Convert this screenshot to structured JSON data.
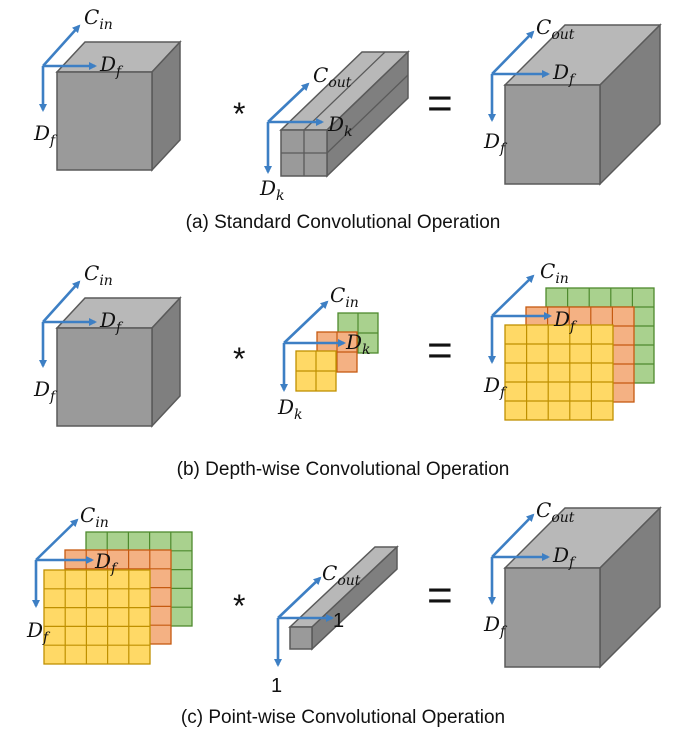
{
  "diagram": {
    "panels": [
      {
        "caption": "(a) Standard Convolutional Operation",
        "input": {
          "top": "C",
          "top_sub": "in",
          "right": "D",
          "right_sub": "f",
          "left": "D",
          "left_sub": "f"
        },
        "kernel": {
          "top": "C",
          "top_sub": "out",
          "right": "D",
          "right_sub": "k",
          "bottom": "D",
          "bottom_sub": "k"
        },
        "output": {
          "top": "C",
          "top_sub": "out",
          "right": "D",
          "right_sub": "f",
          "left": "D",
          "left_sub": "f"
        }
      },
      {
        "caption": "(b) Depth-wise Convolutional Operation",
        "input": {
          "top": "C",
          "top_sub": "in",
          "right": "D",
          "right_sub": "f",
          "left": "D",
          "left_sub": "f"
        },
        "kernel": {
          "top": "C",
          "top_sub": "in",
          "right": "D",
          "right_sub": "k",
          "bottom": "D",
          "bottom_sub": "k"
        },
        "output": {
          "top": "C",
          "top_sub": "in",
          "right": "D",
          "right_sub": "f",
          "left": "D",
          "left_sub": "f"
        }
      },
      {
        "caption": "(c) Point-wise Convolutional Operation",
        "input": {
          "top": "C",
          "top_sub": "in",
          "right": "D",
          "right_sub": "f",
          "left": "D",
          "left_sub": "f"
        },
        "kernel": {
          "top": "C",
          "top_sub": "out",
          "right": "1",
          "bottom": "1"
        },
        "output": {
          "top": "C",
          "top_sub": "out",
          "right": "D",
          "right_sub": "f",
          "left": "D",
          "left_sub": "f"
        }
      }
    ],
    "operators": {
      "multiply": "*",
      "equals": "="
    },
    "colors": {
      "cube_front": "#9a9a9a",
      "cube_top": "#b8b8b8",
      "cube_side": "#7f7f7f",
      "cube_edge": "#5a5a5a",
      "axis": "#3d7fc4",
      "grid_green": "#a9d18e",
      "grid_green_edge": "#4e8a2e",
      "grid_orange": "#f4b183",
      "grid_orange_edge": "#c55a11",
      "grid_yellow": "#ffd966",
      "grid_yellow_edge": "#bf9000"
    }
  }
}
